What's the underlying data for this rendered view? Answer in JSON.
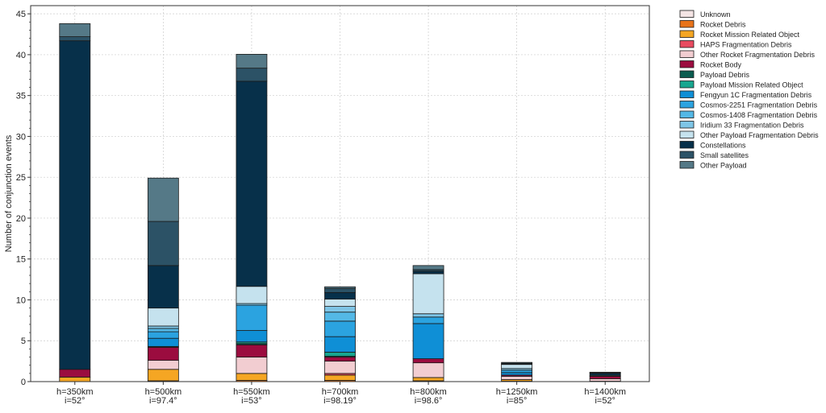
{
  "chart_data": {
    "type": "bar",
    "stacked": true,
    "title": "",
    "xlabel": "",
    "ylabel": "Number of conjunction events",
    "ylim": [
      0,
      46
    ],
    "yticks": [
      0,
      5,
      10,
      15,
      20,
      25,
      30,
      35,
      40,
      45
    ],
    "grid": true,
    "legend_position": "right",
    "categories": [
      [
        "h=350km",
        "i=52°"
      ],
      [
        "h=500km",
        "i=97.4°"
      ],
      [
        "h=550km",
        "i=53°"
      ],
      [
        "h=700km",
        "i=98.19°"
      ],
      [
        "h=800km",
        "i=98.6°"
      ],
      [
        "h=1250km",
        "i=85°"
      ],
      [
        "h=1400km",
        "i=52°"
      ]
    ],
    "series": [
      {
        "name": "Unknown",
        "color": "#f4e4e4",
        "values": [
          0.0,
          0.0,
          0.0,
          0.0,
          0.0,
          0.0,
          0.0
        ]
      },
      {
        "name": "Rocket Debris",
        "color": "#e8731a",
        "values": [
          0.0,
          0.1,
          0.15,
          0.15,
          0.1,
          0.05,
          0.0
        ]
      },
      {
        "name": "Rocket Mission Related Object",
        "color": "#f5a623",
        "values": [
          0.55,
          1.4,
          0.85,
          0.65,
          0.4,
          0.2,
          0.05
        ]
      },
      {
        "name": "HAPS Fragmentation Debris",
        "color": "#e84a5f",
        "values": [
          0.0,
          0.0,
          0.0,
          0.2,
          0.0,
          0.0,
          0.0
        ]
      },
      {
        "name": "Other Rocket Fragmentation Debris",
        "color": "#f2cdd1",
        "values": [
          0.0,
          1.1,
          2.0,
          1.5,
          1.8,
          0.4,
          0.3
        ]
      },
      {
        "name": "Rocket Body",
        "color": "#9b0c3f",
        "values": [
          0.95,
          1.6,
          1.5,
          0.5,
          0.5,
          0.15,
          0.3
        ]
      },
      {
        "name": "Payload Debris",
        "color": "#0a5c50",
        "values": [
          0.0,
          0.1,
          0.15,
          0.1,
          0.0,
          0.0,
          0.0
        ]
      },
      {
        "name": "Payload Mission Related Object",
        "color": "#17a68f",
        "values": [
          0.0,
          0.0,
          0.2,
          0.5,
          0.0,
          0.0,
          0.0
        ]
      },
      {
        "name": "Fengyun 1C Fragmentation Debris",
        "color": "#0f8fd6",
        "values": [
          0.0,
          1.0,
          1.4,
          1.9,
          4.3,
          0.3,
          0.0
        ]
      },
      {
        "name": "Cosmos-2251 Fragmentation Debris",
        "color": "#2ba3e0",
        "values": [
          0.0,
          0.8,
          3.1,
          1.9,
          0.8,
          0.3,
          0.0
        ]
      },
      {
        "name": "Cosmos-1408 Fragmentation Debris",
        "color": "#54b8e6",
        "values": [
          0.0,
          0.4,
          0.0,
          1.1,
          0.0,
          0.0,
          0.0
        ]
      },
      {
        "name": "Iridium 33 Fragmentation Debris",
        "color": "#7ec5e6",
        "values": [
          0.0,
          0.3,
          0.2,
          0.7,
          0.4,
          0.2,
          0.0
        ]
      },
      {
        "name": "Other Payload Fragmentation Debris",
        "color": "#c5e2ee",
        "values": [
          0.0,
          2.2,
          2.1,
          0.9,
          4.9,
          0.5,
          0.1
        ]
      },
      {
        "name": "Constellations",
        "color": "#07304a",
        "values": [
          40.2,
          5.2,
          25.1,
          0.8,
          0.3,
          0.05,
          0.25
        ]
      },
      {
        "name": "Small satellites",
        "color": "#2c5266",
        "values": [
          0.5,
          5.4,
          1.6,
          0.5,
          0.2,
          0.1,
          0.1
        ]
      },
      {
        "name": "Other Payload",
        "color": "#557987",
        "values": [
          1.6,
          5.3,
          1.7,
          0.2,
          0.5,
          0.1,
          0.05
        ]
      }
    ]
  }
}
